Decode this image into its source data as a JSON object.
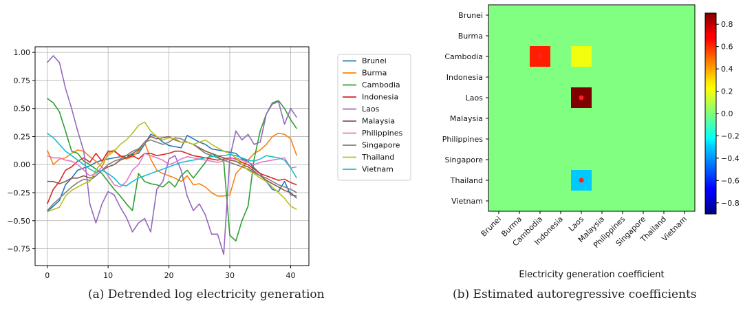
{
  "captions": {
    "a": "(a) Detrended log electricity generation",
    "b": "(b) Estimated autoregressive coefficients"
  },
  "chart_data": [
    {
      "type": "line",
      "title": "",
      "xlabel": "",
      "ylabel": "",
      "xlim": [
        -2,
        43
      ],
      "ylim": [
        -0.9,
        1.05
      ],
      "xticks": [
        0,
        10,
        20,
        30,
        40
      ],
      "yticks": [
        -0.75,
        -0.5,
        -0.25,
        0.0,
        0.25,
        0.5,
        0.75,
        1.0
      ],
      "ytick_labels": [
        "−0.75",
        "−0.50",
        "−0.25",
        "0.00",
        "0.25",
        "0.50",
        "0.75",
        "1.00"
      ],
      "grid": true,
      "legend": "outside-right",
      "x": [
        0,
        1,
        2,
        3,
        4,
        5,
        6,
        7,
        8,
        9,
        10,
        11,
        12,
        13,
        14,
        15,
        16,
        17,
        18,
        19,
        20,
        21,
        22,
        23,
        24,
        25,
        26,
        27,
        28,
        29,
        30,
        31,
        32,
        33,
        34,
        35,
        36,
        37,
        38,
        39,
        40,
        41
      ],
      "series": [
        {
          "name": "Brunei",
          "color": "#1f77b4",
          "values": [
            -0.42,
            -0.37,
            -0.32,
            -0.18,
            -0.12,
            -0.05,
            -0.03,
            -0.01,
            0.02,
            0.04,
            0.05,
            0.06,
            0.07,
            0.08,
            0.09,
            0.1,
            0.18,
            0.27,
            0.25,
            0.2,
            0.17,
            0.16,
            0.15,
            0.26,
            0.23,
            0.2,
            0.18,
            0.14,
            0.13,
            0.12,
            0.11,
            0.1,
            0.05,
            0.03,
            -0.03,
            -0.08,
            -0.15,
            -0.22,
            -0.24,
            -0.15,
            -0.27,
            -0.28
          ]
        },
        {
          "name": "Burma",
          "color": "#ff7f0e",
          "values": [
            0.13,
            0.0,
            0.05,
            0.06,
            0.1,
            0.13,
            0.12,
            0.07,
            0.03,
            -0.02,
            0.1,
            0.13,
            0.07,
            0.05,
            0.07,
            0.12,
            0.2,
            0.05,
            -0.05,
            -0.08,
            -0.1,
            -0.12,
            -0.15,
            -0.1,
            -0.18,
            -0.17,
            -0.2,
            -0.25,
            -0.28,
            -0.28,
            -0.27,
            -0.08,
            -0.02,
            0.04,
            0.1,
            0.13,
            0.18,
            0.25,
            0.28,
            0.27,
            0.23,
            0.08
          ]
        },
        {
          "name": "Cambodia",
          "color": "#2ca02c",
          "values": [
            0.59,
            0.55,
            0.47,
            0.3,
            0.12,
            0.1,
            0.03,
            0.0,
            -0.04,
            -0.08,
            -0.15,
            -0.22,
            -0.28,
            -0.35,
            -0.41,
            -0.08,
            -0.15,
            -0.17,
            -0.18,
            -0.2,
            -0.15,
            -0.2,
            -0.1,
            -0.05,
            -0.12,
            -0.05,
            0.02,
            0.1,
            0.07,
            0.03,
            -0.63,
            -0.68,
            -0.5,
            -0.37,
            0.05,
            0.3,
            0.45,
            0.55,
            0.57,
            0.5,
            0.4,
            0.32
          ]
        },
        {
          "name": "Indonesia",
          "color": "#d62728",
          "values": [
            -0.35,
            -0.22,
            -0.15,
            -0.05,
            -0.02,
            0.03,
            0.06,
            0.02,
            0.1,
            0.03,
            0.12,
            0.12,
            0.08,
            0.06,
            0.08,
            0.05,
            0.1,
            0.1,
            0.08,
            0.09,
            0.1,
            0.12,
            0.12,
            0.1,
            0.08,
            0.07,
            0.06,
            0.05,
            0.04,
            0.05,
            0.06,
            0.05,
            0.02,
            0.0,
            -0.04,
            -0.08,
            -0.1,
            -0.12,
            -0.14,
            -0.13,
            -0.16,
            -0.18
          ]
        },
        {
          "name": "Laos",
          "color": "#9467bd",
          "values": [
            0.91,
            0.97,
            0.91,
            0.68,
            0.5,
            0.3,
            0.12,
            -0.35,
            -0.52,
            -0.35,
            -0.24,
            -0.27,
            -0.38,
            -0.47,
            -0.6,
            -0.52,
            -0.48,
            -0.6,
            -0.22,
            -0.15,
            0.05,
            0.08,
            -0.05,
            -0.28,
            -0.41,
            -0.35,
            -0.45,
            -0.62,
            -0.62,
            -0.8,
            0.06,
            0.3,
            0.22,
            0.27,
            0.18,
            0.2,
            0.45,
            0.54,
            0.56,
            0.36,
            0.5,
            0.42
          ]
        },
        {
          "name": "Malaysia",
          "color": "#8c564b",
          "values": [
            -0.15,
            -0.15,
            -0.17,
            -0.15,
            -0.12,
            -0.12,
            -0.1,
            -0.12,
            -0.1,
            -0.05,
            -0.02,
            0.0,
            0.04,
            0.06,
            0.1,
            0.13,
            0.2,
            0.25,
            0.23,
            0.24,
            0.25,
            0.22,
            0.2,
            0.2,
            0.18,
            0.15,
            0.12,
            0.1,
            0.08,
            0.06,
            0.04,
            0.03,
            0.0,
            -0.02,
            -0.06,
            -0.1,
            -0.14,
            -0.17,
            -0.2,
            -0.23,
            -0.25,
            -0.3
          ]
        },
        {
          "name": "Philippines",
          "color": "#e377c2",
          "values": [
            0.08,
            0.06,
            0.06,
            0.04,
            0.03,
            0.0,
            -0.05,
            -0.1,
            -0.08,
            -0.02,
            -0.1,
            -0.18,
            -0.2,
            -0.15,
            -0.05,
            0.0,
            0.1,
            0.08,
            0.06,
            0.04,
            0.0,
            0.02,
            0.05,
            0.07,
            0.06,
            0.05,
            0.04,
            0.03,
            0.02,
            0.03,
            0.05,
            0.06,
            0.04,
            0.02,
            0.0,
            0.02,
            0.03,
            0.04,
            0.05,
            0.06,
            -0.03,
            -0.02
          ]
        },
        {
          "name": "Singapore",
          "color": "#7f7f7f",
          "values": [
            -0.41,
            -0.35,
            -0.3,
            -0.25,
            -0.2,
            -0.16,
            -0.13,
            -0.14,
            -0.1,
            -0.05,
            0.0,
            0.03,
            0.05,
            0.08,
            0.12,
            0.14,
            0.2,
            0.22,
            0.2,
            0.18,
            0.2,
            0.24,
            0.23,
            0.2,
            0.18,
            0.14,
            0.1,
            0.08,
            0.06,
            0.04,
            0.02,
            0.0,
            -0.02,
            -0.04,
            -0.07,
            -0.1,
            -0.12,
            -0.15,
            -0.18,
            -0.2,
            -0.22,
            -0.25
          ]
        },
        {
          "name": "Thailand",
          "color": "#bcbd22",
          "values": [
            -0.42,
            -0.4,
            -0.38,
            -0.28,
            -0.23,
            -0.2,
            -0.17,
            -0.15,
            -0.05,
            0.02,
            0.08,
            0.12,
            0.18,
            0.22,
            0.28,
            0.35,
            0.38,
            0.3,
            0.25,
            0.22,
            0.24,
            0.23,
            0.2,
            0.2,
            0.18,
            0.2,
            0.22,
            0.18,
            0.15,
            0.12,
            0.1,
            0.06,
            0.0,
            -0.05,
            -0.08,
            -0.12,
            -0.15,
            -0.2,
            -0.25,
            -0.3,
            -0.37,
            -0.4
          ]
        },
        {
          "name": "Vietnam",
          "color": "#17becf",
          "values": [
            0.28,
            0.24,
            0.18,
            0.12,
            0.08,
            0.04,
            0.0,
            -0.04,
            -0.07,
            -0.05,
            -0.08,
            -0.12,
            -0.18,
            -0.19,
            -0.15,
            -0.12,
            -0.1,
            -0.08,
            -0.06,
            -0.04,
            -0.02,
            0.0,
            0.02,
            0.03,
            0.04,
            0.05,
            0.06,
            0.07,
            0.08,
            0.08,
            0.09,
            0.08,
            0.06,
            0.04,
            0.03,
            0.05,
            0.08,
            0.07,
            0.06,
            0.04,
            -0.03,
            -0.12
          ]
        }
      ]
    },
    {
      "type": "heatmap",
      "title": "",
      "xlabel": "Electricity generation coefficient",
      "ylabel": "",
      "colormap": "jet",
      "vmin": -0.9,
      "vmax": 0.9,
      "colorbar_ticks": [
        0.8,
        0.6,
        0.4,
        0.2,
        0.0,
        -0.2,
        -0.4,
        -0.6,
        -0.8
      ],
      "colorbar_tick_labels": [
        "0.8",
        "0.6",
        "0.4",
        "0.2",
        "0.0",
        "−0.2",
        "−0.4",
        "−0.6",
        "−0.8"
      ],
      "x_categories": [
        "Brunei",
        "Burma",
        "Cambodia",
        "Indonesia",
        "Laos",
        "Malaysia",
        "Philippines",
        "Singapore",
        "Thailand",
        "Vietnam"
      ],
      "y_categories": [
        "Brunei",
        "Burma",
        "Cambodia",
        "Indonesia",
        "Laos",
        "Malaysia",
        "Philippines",
        "Singapore",
        "Thailand",
        "Vietnam"
      ],
      "matrix": [
        [
          0,
          0,
          0,
          0,
          0,
          0,
          0,
          0,
          0,
          0
        ],
        [
          0,
          0,
          0,
          0,
          0,
          0,
          0,
          0,
          0,
          0
        ],
        [
          0,
          0,
          0.62,
          0,
          0.2,
          0,
          0,
          0,
          0,
          0
        ],
        [
          0,
          0,
          0,
          0,
          0,
          0,
          0,
          0,
          0,
          0
        ],
        [
          0,
          0,
          0,
          0,
          0.92,
          0,
          0,
          0,
          0,
          0
        ],
        [
          0,
          0,
          0,
          0,
          0,
          0,
          0,
          0,
          0,
          0
        ],
        [
          0,
          0,
          0,
          0,
          0,
          0,
          0,
          0,
          0,
          0
        ],
        [
          0,
          0,
          0,
          0,
          0,
          0,
          0,
          0,
          0,
          0
        ],
        [
          0,
          0,
          0,
          0,
          -0.32,
          0,
          0,
          0,
          0,
          0
        ],
        [
          0,
          0,
          0,
          0,
          0,
          0,
          0,
          0,
          0,
          0
        ]
      ],
      "markers": [
        {
          "row": "Cambodia",
          "col": "Cambodia",
          "color": "#ff2020"
        },
        {
          "row": "Laos",
          "col": "Laos",
          "color": "#ff2020"
        },
        {
          "row": "Thailand",
          "col": "Laos",
          "color": "#ff2020"
        }
      ]
    }
  ]
}
